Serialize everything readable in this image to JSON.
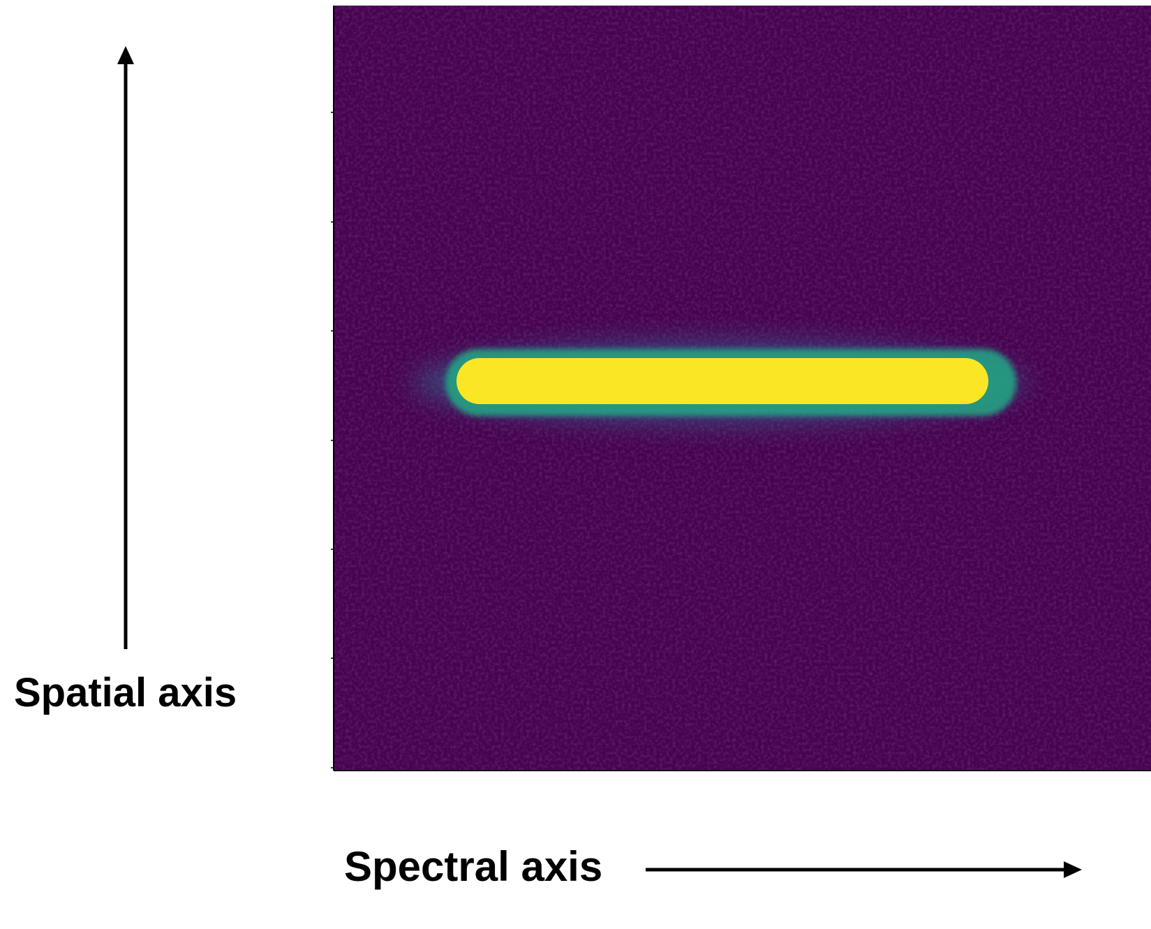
{
  "labels": {
    "spatial_axis": "Spatial axis",
    "spectral_axis": "Spectral axis"
  },
  "colors": {
    "background": "#47034f",
    "band_core": "#fbe625",
    "band_edge": "#22a884",
    "band_glow": "#31688e",
    "arrow": "#000000"
  },
  "image": {
    "colormap": "viridis",
    "content": "single horizontal bright spectral trace on dark background with noise"
  }
}
